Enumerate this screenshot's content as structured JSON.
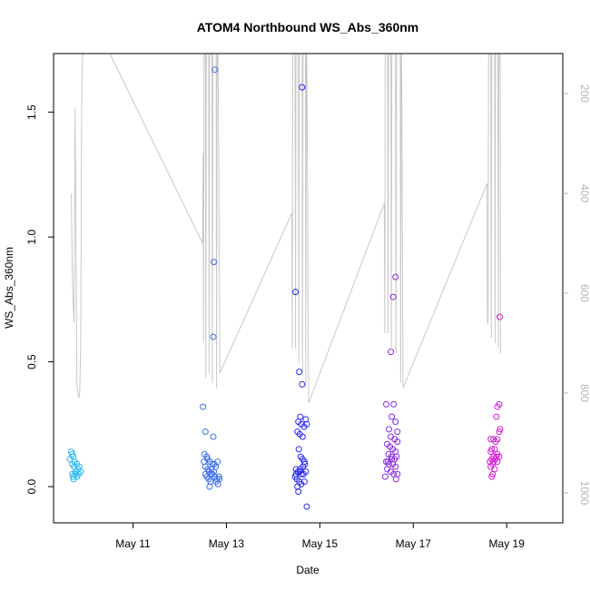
{
  "chart_data": {
    "type": "scatter",
    "title": "ATOM4 Northbound WS_Abs_360nm",
    "xlabel": "Date",
    "ylabel": "WS_Abs_360nm",
    "x_unit": "days since May 11 00:00 (May 11 = 0)",
    "x_ticks": [
      {
        "value": 0,
        "label": "May 11"
      },
      {
        "value": 2,
        "label": "May 13"
      },
      {
        "value": 4,
        "label": "May 15"
      },
      {
        "value": 6,
        "label": "May 17"
      },
      {
        "value": 8,
        "label": "May 19"
      }
    ],
    "xlim": [
      -1.7,
      9.2
    ],
    "y_ticks": [
      {
        "value": 0.0,
        "label": "0.0"
      },
      {
        "value": 0.5,
        "label": "0.5"
      },
      {
        "value": 1.0,
        "label": "1.0"
      },
      {
        "value": 1.5,
        "label": "1.5"
      }
    ],
    "ylim": [
      -0.145,
      1.735
    ],
    "secondary_axis": {
      "side": "right",
      "color": "#b4b4b4",
      "reversed": true,
      "ticks": [
        {
          "value": 200,
          "label": "200"
        },
        {
          "value": 400,
          "label": "400"
        },
        {
          "value": 600,
          "label": "600"
        },
        {
          "value": 800,
          "label": "800"
        },
        {
          "value": 1000,
          "label": "1000"
        }
      ],
      "ylim": [
        1060,
        120
      ]
    },
    "grid": false,
    "legend": "none",
    "series": [
      {
        "color": "#29b6f6",
        "points": [
          [
            -1.32,
            0.14
          ],
          [
            -1.3,
            0.13
          ],
          [
            -1.28,
            0.12
          ],
          [
            -1.25,
            0.1
          ],
          [
            -1.3,
            0.09
          ],
          [
            -1.26,
            0.08
          ],
          [
            -1.2,
            0.09
          ],
          [
            -1.15,
            0.08
          ],
          [
            -1.18,
            0.07
          ],
          [
            -1.22,
            0.06
          ],
          [
            -1.3,
            0.05
          ],
          [
            -1.24,
            0.05
          ],
          [
            -1.12,
            0.06
          ],
          [
            -1.28,
            0.04
          ],
          [
            -1.2,
            0.04
          ],
          [
            -1.35,
            0.11
          ],
          [
            -1.16,
            0.05
          ],
          [
            -1.27,
            0.03
          ]
        ]
      },
      {
        "color": "#3f6fe8",
        "points": [
          [
            1.5,
            0.32
          ],
          [
            1.55,
            0.22
          ],
          [
            1.72,
            0.2
          ],
          [
            1.53,
            0.13
          ],
          [
            1.58,
            0.12
          ],
          [
            1.6,
            0.11
          ],
          [
            1.65,
            0.1
          ],
          [
            1.7,
            0.09
          ],
          [
            1.74,
            0.09
          ],
          [
            1.52,
            0.1
          ],
          [
            1.55,
            0.08
          ],
          [
            1.6,
            0.07
          ],
          [
            1.63,
            0.06
          ],
          [
            1.67,
            0.05
          ],
          [
            1.7,
            0.05
          ],
          [
            1.75,
            0.04
          ],
          [
            1.8,
            0.03
          ],
          [
            1.85,
            0.03
          ],
          [
            1.58,
            0.04
          ],
          [
            1.62,
            0.03
          ],
          [
            1.66,
            0.02
          ],
          [
            1.78,
            0.02
          ],
          [
            1.82,
            0.01
          ],
          [
            1.68,
            0.07
          ],
          [
            1.55,
            0.05
          ],
          [
            1.73,
            0.06
          ],
          [
            1.77,
            0.08
          ],
          [
            1.81,
            0.1
          ],
          [
            1.84,
            0.04
          ],
          [
            1.64,
            0.0
          ],
          [
            1.72,
            0.6
          ],
          [
            1.73,
            0.9
          ],
          [
            1.75,
            1.67
          ]
        ]
      },
      {
        "color": "#2b2bef",
        "points": [
          [
            3.48,
            0.78
          ],
          [
            3.62,
            1.6
          ],
          [
            3.56,
            0.46
          ],
          [
            3.62,
            0.41
          ],
          [
            3.58,
            0.28
          ],
          [
            3.54,
            0.26
          ],
          [
            3.6,
            0.25
          ],
          [
            3.66,
            0.24
          ],
          [
            3.52,
            0.22
          ],
          [
            3.57,
            0.21
          ],
          [
            3.63,
            0.2
          ],
          [
            3.7,
            0.27
          ],
          [
            3.72,
            0.25
          ],
          [
            3.55,
            0.15
          ],
          [
            3.59,
            0.12
          ],
          [
            3.63,
            0.11
          ],
          [
            3.67,
            0.1
          ],
          [
            3.49,
            0.07
          ],
          [
            3.53,
            0.06
          ],
          [
            3.57,
            0.06
          ],
          [
            3.61,
            0.05
          ],
          [
            3.65,
            0.05
          ],
          [
            3.7,
            0.06
          ],
          [
            3.47,
            0.04
          ],
          [
            3.51,
            0.03
          ],
          [
            3.56,
            0.02
          ],
          [
            3.6,
            0.01
          ],
          [
            3.67,
            0.02
          ],
          [
            3.52,
            0.0
          ],
          [
            3.54,
            -0.02
          ],
          [
            3.72,
            -0.08
          ],
          [
            3.49,
            0.05
          ],
          [
            3.64,
            0.08
          ],
          [
            3.68,
            0.09
          ],
          [
            3.58,
            0.07
          ]
        ]
      },
      {
        "color": "#8a2be2",
        "points": [
          [
            5.62,
            0.84
          ],
          [
            5.57,
            0.76
          ],
          [
            5.52,
            0.54
          ],
          [
            5.42,
            0.33
          ],
          [
            5.58,
            0.33
          ],
          [
            5.54,
            0.28
          ],
          [
            5.62,
            0.26
          ],
          [
            5.66,
            0.22
          ],
          [
            5.48,
            0.23
          ],
          [
            5.52,
            0.2
          ],
          [
            5.6,
            0.19
          ],
          [
            5.66,
            0.18
          ],
          [
            5.44,
            0.17
          ],
          [
            5.5,
            0.16
          ],
          [
            5.56,
            0.15
          ],
          [
            5.62,
            0.14
          ],
          [
            5.47,
            0.13
          ],
          [
            5.53,
            0.12
          ],
          [
            5.6,
            0.11
          ],
          [
            5.64,
            0.12
          ],
          [
            5.42,
            0.1
          ],
          [
            5.48,
            0.09
          ],
          [
            5.56,
            0.09
          ],
          [
            5.62,
            0.08
          ],
          [
            5.44,
            0.07
          ],
          [
            5.52,
            0.06
          ],
          [
            5.58,
            0.05
          ],
          [
            5.66,
            0.05
          ],
          [
            5.4,
            0.04
          ],
          [
            5.63,
            0.03
          ],
          [
            5.46,
            0.1
          ],
          [
            5.54,
            0.11
          ]
        ]
      },
      {
        "color": "#d61fd6",
        "points": [
          [
            7.85,
            0.68
          ],
          [
            7.8,
            0.32
          ],
          [
            7.84,
            0.33
          ],
          [
            7.78,
            0.28
          ],
          [
            7.86,
            0.23
          ],
          [
            7.84,
            0.22
          ],
          [
            7.66,
            0.19
          ],
          [
            7.72,
            0.19
          ],
          [
            7.8,
            0.19
          ],
          [
            7.76,
            0.18
          ],
          [
            7.68,
            0.15
          ],
          [
            7.74,
            0.15
          ],
          [
            7.66,
            0.14
          ],
          [
            7.8,
            0.13
          ],
          [
            7.84,
            0.12
          ],
          [
            7.72,
            0.12
          ],
          [
            7.78,
            0.12
          ],
          [
            7.68,
            0.11
          ],
          [
            7.76,
            0.11
          ],
          [
            7.64,
            0.1
          ],
          [
            7.72,
            0.1
          ],
          [
            7.8,
            0.1
          ],
          [
            7.7,
            0.09
          ],
          [
            7.66,
            0.08
          ],
          [
            7.74,
            0.07
          ],
          [
            7.7,
            0.05
          ],
          [
            7.68,
            0.04
          ]
        ]
      }
    ],
    "secondary_line": {
      "color": "#c8c8c8",
      "points": [
        [
          -1.32,
          400
        ],
        [
          -1.3,
          560
        ],
        [
          -1.28,
          620
        ],
        [
          -1.26,
          660
        ],
        [
          -1.24,
          230
        ],
        [
          -1.22,
          500
        ],
        [
          -1.2,
          780
        ],
        [
          -1.18,
          800
        ],
        [
          -1.16,
          810
        ],
        [
          -1.14,
          800
        ],
        [
          -1.12,
          700
        ],
        [
          -1.1,
          250
        ],
        [
          -1.09,
          150
        ],
        [
          -1.06,
          100
        ],
        [
          -0.6,
          100
        ],
        [
          1.49,
          500
        ],
        [
          1.5,
          320
        ],
        [
          1.51,
          700
        ],
        [
          1.52,
          150
        ],
        [
          1.53,
          100
        ],
        [
          1.55,
          100
        ],
        [
          1.56,
          770
        ],
        [
          1.57,
          140
        ],
        [
          1.58,
          100
        ],
        [
          1.62,
          100
        ],
        [
          1.63,
          760
        ],
        [
          1.64,
          140
        ],
        [
          1.65,
          100
        ],
        [
          1.69,
          100
        ],
        [
          1.7,
          780
        ],
        [
          1.71,
          140
        ],
        [
          1.72,
          100
        ],
        [
          1.78,
          100
        ],
        [
          1.79,
          790
        ],
        [
          1.8,
          140
        ],
        [
          1.82,
          100
        ],
        [
          1.86,
          760
        ],
        [
          3.4,
          440
        ],
        [
          3.41,
          710
        ],
        [
          3.42,
          140
        ],
        [
          3.43,
          100
        ],
        [
          3.47,
          100
        ],
        [
          3.48,
          710
        ],
        [
          3.49,
          140
        ],
        [
          3.5,
          100
        ],
        [
          3.54,
          100
        ],
        [
          3.55,
          740
        ],
        [
          3.56,
          140
        ],
        [
          3.57,
          100
        ],
        [
          3.62,
          100
        ],
        [
          3.63,
          760
        ],
        [
          3.64,
          140
        ],
        [
          3.65,
          100
        ],
        [
          3.69,
          100
        ],
        [
          3.7,
          790
        ],
        [
          3.71,
          140
        ],
        [
          3.72,
          100
        ],
        [
          3.76,
          820
        ],
        [
          5.38,
          420
        ],
        [
          5.39,
          680
        ],
        [
          5.4,
          140
        ],
        [
          5.41,
          100
        ],
        [
          5.45,
          100
        ],
        [
          5.46,
          680
        ],
        [
          5.47,
          140
        ],
        [
          5.48,
          100
        ],
        [
          5.52,
          100
        ],
        [
          5.53,
          710
        ],
        [
          5.54,
          140
        ],
        [
          5.55,
          100
        ],
        [
          5.62,
          100
        ],
        [
          5.63,
          720
        ],
        [
          5.64,
          170
        ],
        [
          5.65,
          100
        ],
        [
          5.72,
          100
        ],
        [
          5.73,
          780
        ],
        [
          5.74,
          140
        ],
        [
          5.75,
          100
        ],
        [
          5.78,
          790
        ],
        [
          7.58,
          380
        ],
        [
          7.59,
          660
        ],
        [
          7.6,
          660
        ],
        [
          7.61,
          140
        ],
        [
          7.62,
          100
        ],
        [
          7.66,
          100
        ],
        [
          7.67,
          690
        ],
        [
          7.68,
          140
        ],
        [
          7.69,
          100
        ],
        [
          7.74,
          100
        ],
        [
          7.75,
          700
        ],
        [
          7.76,
          140
        ],
        [
          7.77,
          100
        ],
        [
          7.81,
          100
        ],
        [
          7.82,
          710
        ],
        [
          7.83,
          160
        ],
        [
          7.84,
          100
        ],
        [
          7.86,
          100
        ],
        [
          7.87,
          720
        ]
      ]
    }
  }
}
